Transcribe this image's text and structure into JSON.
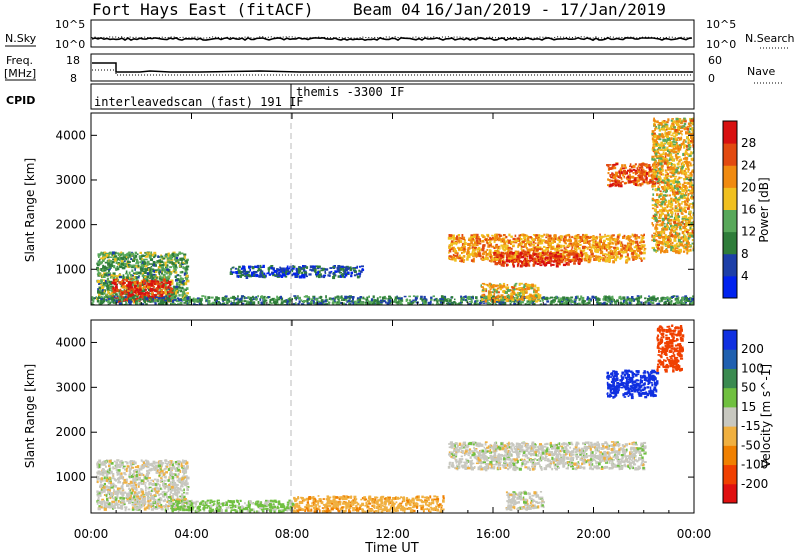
{
  "title": {
    "station": "Fort Hays East (fitACF)",
    "beam": "Beam 04",
    "date_range": "16/Jan/2019 - 17/Jan/2019"
  },
  "noise_panel": {
    "left_label": "N.Sky",
    "right_label": "N.Search",
    "left_ticks": [
      "10^5",
      "10^0"
    ],
    "right_ticks": [
      "10^5",
      "10^0"
    ]
  },
  "freq_panel": {
    "left_label_1": "Freq.",
    "left_label_2": "[MHz]",
    "right_label": "Nave",
    "left_ticks": [
      "18",
      "8"
    ],
    "right_ticks": [
      "60",
      "0"
    ]
  },
  "cpid_panel": {
    "label": "CPID",
    "segments": [
      {
        "text": "interleavedscan (fast) 191 IF",
        "start_hour": 0
      },
      {
        "text": "themis -3300 IF",
        "start_hour": 8
      }
    ]
  },
  "power_panel": {
    "ylabel": "Slant Range [km]",
    "yticks": [
      "4000",
      "3000",
      "2000",
      "1000"
    ],
    "cbar_label": "Power [dB]",
    "cbar_ticks": [
      "28",
      "24",
      "20",
      "16",
      "12",
      "8",
      "4"
    ]
  },
  "velocity_panel": {
    "ylabel": "Slant Range [km]",
    "yticks": [
      "4000",
      "3000",
      "2000",
      "1000"
    ],
    "cbar_label": "Velocity [m s^-1]",
    "cbar_ticks": [
      "200",
      "100",
      "50",
      "15",
      "-15",
      "-50",
      "-100",
      "-200"
    ]
  },
  "xaxis": {
    "label": "Time UT",
    "ticks": [
      "00:00",
      "04:00",
      "08:00",
      "12:00",
      "16:00",
      "20:00",
      "00:00"
    ]
  },
  "colors": {
    "power_scale": [
      "#0022ee",
      "#1d3fa8",
      "#2f7d3a",
      "#58a85a",
      "#f0c020",
      "#f08a10",
      "#e24a10",
      "#d81010"
    ],
    "velocity_scale": [
      "#e01010",
      "#f04000",
      "#f08000",
      "#f0b040",
      "#c8c8c0",
      "#70c040",
      "#3a8a50",
      "#2060b0",
      "#1030e0"
    ]
  },
  "chart_data": [
    {
      "type": "heatmap",
      "description": "range-time-intensity backscatter power",
      "xlabel": "Time UT",
      "ylabel": "Slant Range [km]",
      "x_unit": "hours UT",
      "xlim": [
        0,
        24
      ],
      "ylim": [
        200,
        4500
      ],
      "colorbar": {
        "label": "Power [dB]",
        "range": [
          0,
          30
        ]
      },
      "regions": [
        {
          "x": [
            0.2,
            3.8
          ],
          "y": [
            300,
            1400
          ],
          "value": 12
        },
        {
          "x": [
            0.8,
            3.2
          ],
          "y": [
            300,
            800
          ],
          "value": 26
        },
        {
          "x": [
            0,
            24
          ],
          "y": [
            200,
            420
          ],
          "value": 10
        },
        {
          "x": [
            5.5,
            10.8
          ],
          "y": [
            850,
            1100
          ],
          "value": 6
        },
        {
          "x": [
            14.2,
            22.0
          ],
          "y": [
            1200,
            1800
          ],
          "value": 20
        },
        {
          "x": [
            16.0,
            19.5
          ],
          "y": [
            1100,
            1400
          ],
          "value": 26
        },
        {
          "x": [
            15.5,
            17.8
          ],
          "y": [
            300,
            700
          ],
          "value": 18
        },
        {
          "x": [
            20.5,
            22.5
          ],
          "y": [
            2900,
            3400
          ],
          "value": 24
        },
        {
          "x": [
            22.3,
            24.0
          ],
          "y": [
            1400,
            4400
          ],
          "value": 18
        }
      ]
    },
    {
      "type": "heatmap",
      "description": "range-time-intensity line-of-sight velocity",
      "xlabel": "Time UT",
      "ylabel": "Slant Range [km]",
      "x_unit": "hours UT",
      "xlim": [
        0,
        24
      ],
      "ylim": [
        200,
        4500
      ],
      "colorbar": {
        "label": "Velocity [m s^-1]",
        "range": [
          -250,
          250
        ]
      },
      "regions": [
        {
          "x": [
            0.2,
            3.8
          ],
          "y": [
            300,
            1400
          ],
          "value": 0
        },
        {
          "x": [
            3.0,
            8.0
          ],
          "y": [
            250,
            500
          ],
          "value": 25
        },
        {
          "x": [
            8.0,
            14.0
          ],
          "y": [
            250,
            600
          ],
          "value": -40
        },
        {
          "x": [
            14.2,
            22.0
          ],
          "y": [
            1200,
            1800
          ],
          "value": 0
        },
        {
          "x": [
            16.5,
            18.0
          ],
          "y": [
            300,
            700
          ],
          "value": 0
        },
        {
          "x": [
            20.5,
            22.5
          ],
          "y": [
            2800,
            3400
          ],
          "value": 220
        },
        {
          "x": [
            22.5,
            23.5
          ],
          "y": [
            3400,
            4400
          ],
          "value": -180
        }
      ]
    }
  ]
}
